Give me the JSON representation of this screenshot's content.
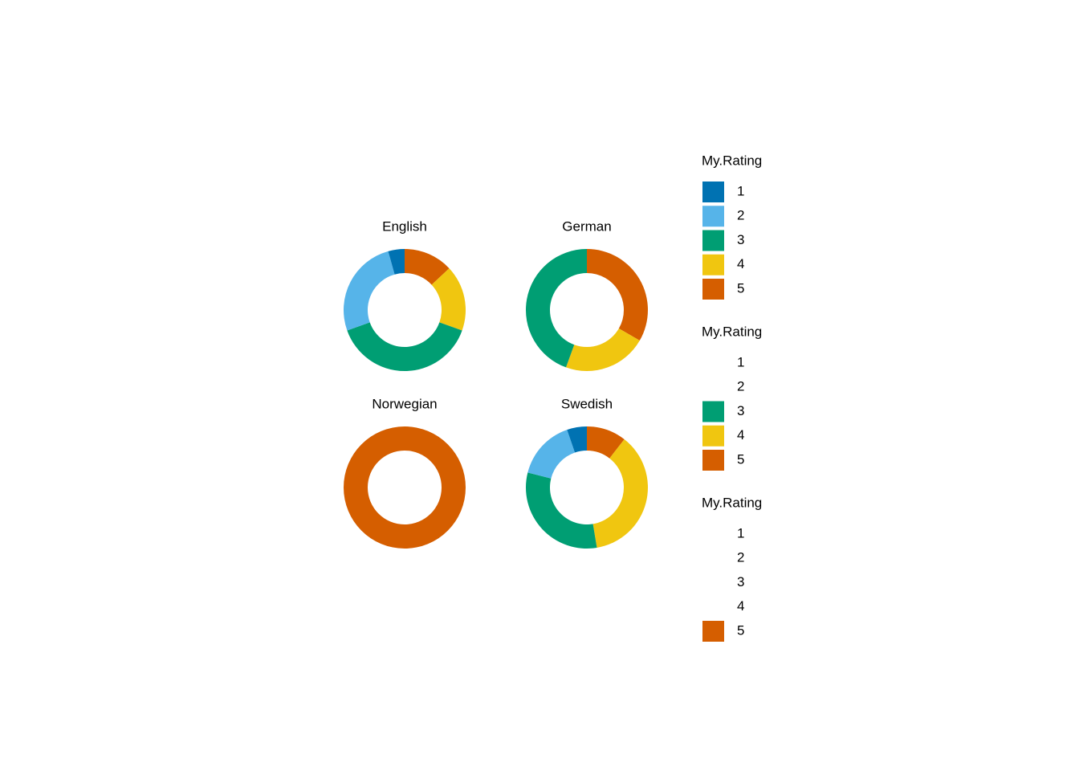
{
  "chart_data": {
    "type": "donut",
    "categories": [
      "1",
      "2",
      "3",
      "4",
      "5"
    ],
    "colors": [
      "#0072B2",
      "#56B4E9",
      "#009E73",
      "#F0C610",
      "#D55E00"
    ],
    "panels": [
      {
        "title": "English",
        "values": [
          1,
          6,
          9,
          4,
          3
        ]
      },
      {
        "title": "German",
        "values": [
          0,
          0,
          4,
          2,
          3
        ]
      },
      {
        "title": "Norwegian",
        "values": [
          0,
          0,
          0,
          0,
          1
        ]
      },
      {
        "title": "Swedish",
        "values": [
          1,
          3,
          6,
          7,
          2
        ]
      }
    ],
    "legends": [
      {
        "title": "My.Rating",
        "labels": [
          "1",
          "2",
          "3",
          "4",
          "5"
        ],
        "colors": [
          "#0072B2",
          "#56B4E9",
          "#009E73",
          "#F0C610",
          "#D55E00"
        ]
      },
      {
        "title": "My.Rating",
        "labels": [
          "1",
          "2",
          "3",
          "4",
          "5"
        ],
        "colors": [
          null,
          null,
          "#009E73",
          "#F0C610",
          "#D55E00"
        ]
      },
      {
        "title": "My.Rating",
        "labels": [
          "1",
          "2",
          "3",
          "4",
          "5"
        ],
        "colors": [
          null,
          null,
          null,
          null,
          "#D55E00"
        ]
      }
    ]
  }
}
